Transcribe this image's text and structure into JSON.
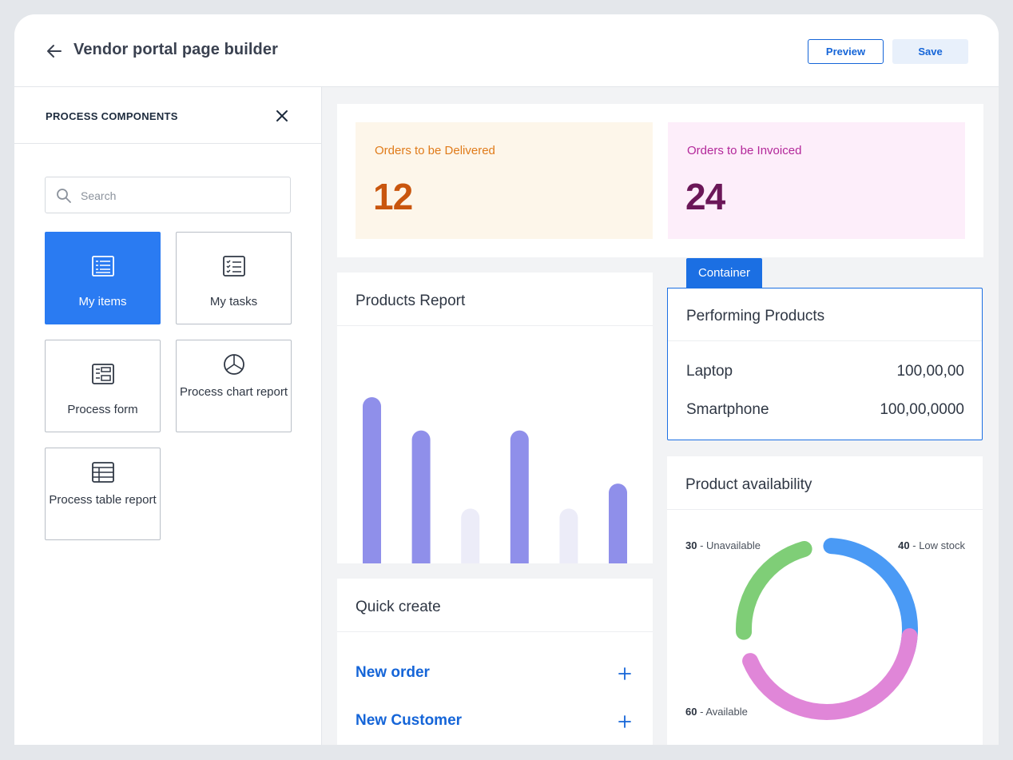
{
  "header": {
    "title": "Vendor portal page builder",
    "preview_label": "Preview",
    "save_label": "Save"
  },
  "sidebar": {
    "title": "PROCESS COMPONENTS",
    "search_placeholder": "Search",
    "tiles": [
      {
        "label": "My items",
        "icon": "list-icon",
        "active": true
      },
      {
        "label": "My tasks",
        "icon": "checklist-icon",
        "active": false
      },
      {
        "label": "Process form",
        "icon": "form-icon",
        "active": false
      },
      {
        "label": "Process chart report",
        "icon": "pie-chart-icon",
        "active": false
      },
      {
        "label": "Process table report",
        "icon": "table-icon",
        "active": false
      }
    ]
  },
  "stats": [
    {
      "label": "Orders to be Delivered",
      "value": "12",
      "bg": "#fdf6ea",
      "label_color": "#e07b1a",
      "value_color": "#c9560e"
    },
    {
      "label": "Orders to be Invoiced",
      "value": "24",
      "bg": "#fdeefa",
      "label_color": "#b3279a",
      "value_color": "#6b1758"
    }
  ],
  "products_report": {
    "title": "Products Report"
  },
  "chart_data": {
    "type": "bar",
    "values": [
      100,
      80,
      33,
      80,
      33,
      48
    ],
    "colors": [
      "#8f8fea",
      "#8f8fea",
      "#ececf8",
      "#8f8fea",
      "#ececf8",
      "#8f8fea"
    ]
  },
  "container_tag": "Container",
  "performing_products": {
    "title": "Performing Products",
    "rows": [
      {
        "name": "Laptop",
        "value": "100,00,00"
      },
      {
        "name": "Smartphone",
        "value": "100,00,0000"
      }
    ]
  },
  "quick_create": {
    "title": "Quick create",
    "items": [
      {
        "label": "New order"
      },
      {
        "label": "New Customer"
      }
    ]
  },
  "availability": {
    "title": "Product availability",
    "segments": [
      {
        "count": "30",
        "label": "Unavailable",
        "value": 30,
        "color": "#7fce77"
      },
      {
        "count": "40",
        "label": "Low stock",
        "value": 40,
        "color": "#4a9af5"
      },
      {
        "count": "60",
        "label": "Available",
        "value": 60,
        "color": "#e086d8"
      }
    ]
  }
}
